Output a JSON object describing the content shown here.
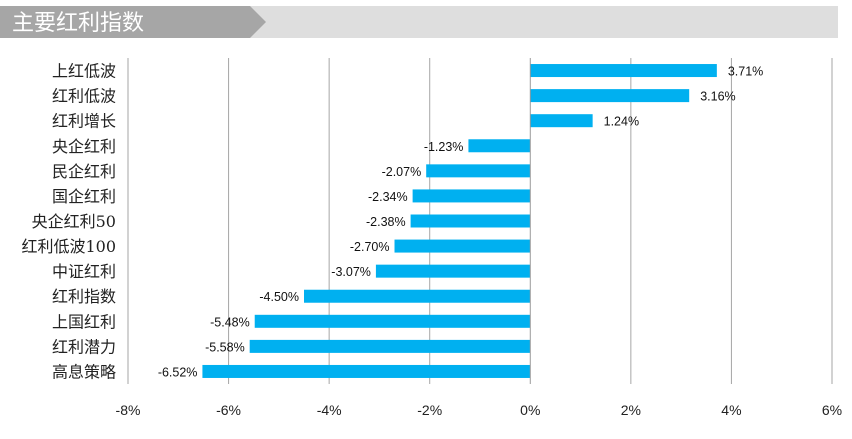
{
  "chart_data": {
    "type": "bar",
    "orientation": "horizontal",
    "title": "主要红利指数",
    "categories": [
      "上红低波",
      "红利低波",
      "红利增长",
      "央企红利",
      "民企红利",
      "国企红利",
      "央企红利50",
      "红利低波100",
      "中证红利",
      "红利指数",
      "上国红利",
      "红利潜力",
      "高息策略"
    ],
    "values": [
      3.71,
      3.16,
      1.24,
      -1.23,
      -2.07,
      -2.34,
      -2.38,
      -2.7,
      -3.07,
      -4.5,
      -5.48,
      -5.58,
      -6.52
    ],
    "value_labels": [
      "3.71%",
      "3.16%",
      "1.24%",
      "-1.23%",
      "-2.07%",
      "-2.34%",
      "-2.38%",
      "-2.70%",
      "-3.07%",
      "-4.50%",
      "-5.48%",
      "-5.58%",
      "-6.52%"
    ],
    "xlim": [
      -8,
      6
    ],
    "xticks": [
      -8,
      -6,
      -4,
      -2,
      0,
      2,
      4,
      6
    ],
    "xtick_labels": [
      "-8%",
      "-6%",
      "-4%",
      "-2%",
      "0%",
      "2%",
      "4%",
      "6%"
    ],
    "xlabel": "",
    "ylabel": "",
    "grid": true,
    "bar_color": "#00B0F0",
    "title_band_color": "#A6A6A6",
    "title_band_light_color": "#DEDEDE",
    "grid_color": "#A6A6A6"
  }
}
